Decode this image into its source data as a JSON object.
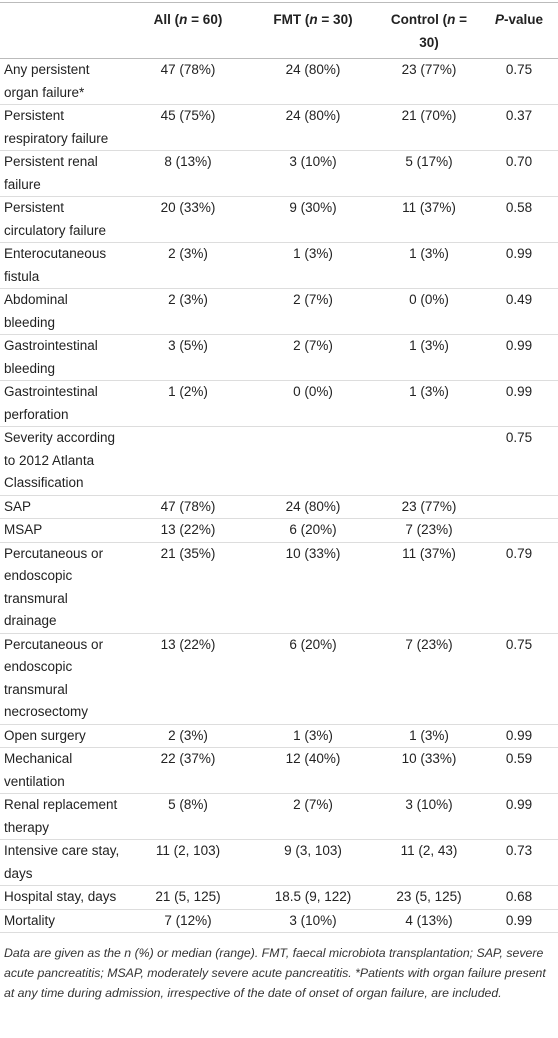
{
  "table": {
    "header": [
      [
        ""
      ],
      [
        {
          "text": "All ("
        },
        {
          "text": "n",
          "italic": true
        },
        {
          "text": " = 60)"
        }
      ],
      [
        {
          "text": "FMT ("
        },
        {
          "text": "n",
          "italic": true
        },
        {
          "text": " = 30)"
        }
      ],
      [
        {
          "text": "Control ("
        },
        {
          "text": "n",
          "italic": true
        },
        {
          "text": " = 30)"
        }
      ],
      [
        {
          "text": "P",
          "italic": true
        },
        {
          "text": "-value"
        }
      ]
    ],
    "rows": [
      [
        "Any persistent organ failure*",
        "47 (78%)",
        "24 (80%)",
        "23 (77%)",
        "0.75"
      ],
      [
        "Persistent respiratory failure",
        "45 (75%)",
        "24 (80%)",
        "21 (70%)",
        "0.37"
      ],
      [
        "Persistent renal failure",
        "8 (13%)",
        "3 (10%)",
        "5 (17%)",
        "0.70"
      ],
      [
        "Persistent circulatory failure",
        "20 (33%)",
        "9 (30%)",
        "11 (37%)",
        "0.58"
      ],
      [
        "Enterocutaneous fistula",
        "2 (3%)",
        "1 (3%)",
        "1 (3%)",
        "0.99"
      ],
      [
        "Abdominal bleeding",
        "2 (3%)",
        "2 (7%)",
        "0 (0%)",
        "0.49"
      ],
      [
        "Gastrointestinal bleeding",
        "3 (5%)",
        "2 (7%)",
        "1 (3%)",
        "0.99"
      ],
      [
        "Gastrointestinal perforation",
        "1 (2%)",
        "0 (0%)",
        "1 (3%)",
        "0.99"
      ],
      [
        "Severity according to 2012 Atlanta Classification",
        null,
        null,
        null,
        "0.75"
      ],
      [
        "SAP",
        "47 (78%)",
        "24 (80%)",
        "23 (77%)",
        null
      ],
      [
        "MSAP",
        "13 (22%)",
        "6 (20%)",
        "7 (23%)",
        null
      ],
      [
        "Percutaneous or endoscopic transmural drainage",
        "21 (35%)",
        "10 (33%)",
        "11 (37%)",
        "0.79"
      ],
      [
        "Percutaneous or endoscopic transmural necrosectomy",
        "13 (22%)",
        "6 (20%)",
        "7 (23%)",
        "0.75"
      ],
      [
        "Open surgery",
        "2 (3%)",
        "1 (3%)",
        "1 (3%)",
        "0.99"
      ],
      [
        "Mechanical ventilation",
        "22 (37%)",
        "12 (40%)",
        "10 (33%)",
        "0.59"
      ],
      [
        "Renal replacement therapy",
        "5 (8%)",
        "2 (7%)",
        "3 (10%)",
        "0.99"
      ],
      [
        "Intensive care stay, days",
        "11 (2, 103)",
        "9 (3, 103)",
        "11 (2, 43)",
        "0.73"
      ],
      [
        "Hospital stay, days",
        "21 (5, 125)",
        "18.5 (9, 122)",
        "23 (5, 125)",
        "0.68"
      ],
      [
        "Mortality",
        "7 (12%)",
        "3 (10%)",
        "4 (13%)",
        "0.99"
      ]
    ]
  },
  "footnote": "Data are given as the n (%) or median (range). FMT, faecal microbiota transplantation; SAP, severe acute pancreatitis; MSAP, moderately severe acute pancreatitis. *Patients with organ failure present at any time during admission, irrespective of the date of onset of organ failure, are included."
}
